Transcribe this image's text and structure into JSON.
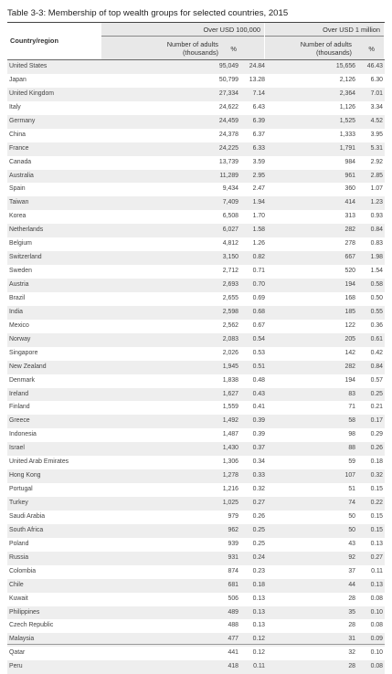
{
  "title": "Table 3-3: Membership of top wealth groups for selected countries, 2015",
  "header": {
    "country_col": "Country/region",
    "group1": "Over USD 100,000",
    "group2": "Over USD 1 million",
    "adults_label": "Number of adults",
    "thousands_label": "(thousands)",
    "pct_label": "%"
  },
  "rows": [
    [
      "United States",
      "95,049",
      "24.84",
      "15,656",
      "46.43"
    ],
    [
      "Japan",
      "50,799",
      "13.28",
      "2,126",
      "6.30"
    ],
    [
      "United Kingdom",
      "27,334",
      "7.14",
      "2,364",
      "7.01"
    ],
    [
      "Italy",
      "24,622",
      "6.43",
      "1,126",
      "3.34"
    ],
    [
      "Germany",
      "24,459",
      "6.39",
      "1,525",
      "4.52"
    ],
    [
      "China",
      "24,378",
      "6.37",
      "1,333",
      "3.95"
    ],
    [
      "France",
      "24,225",
      "6.33",
      "1,791",
      "5.31"
    ],
    [
      "Canada",
      "13,739",
      "3.59",
      "984",
      "2.92"
    ],
    [
      "Australia",
      "11,289",
      "2.95",
      "961",
      "2.85"
    ],
    [
      "Spain",
      "9,434",
      "2.47",
      "360",
      "1.07"
    ],
    [
      "Taiwan",
      "7,409",
      "1.94",
      "414",
      "1.23"
    ],
    [
      "Korea",
      "6,508",
      "1.70",
      "313",
      "0.93"
    ],
    [
      "Netherlands",
      "6,027",
      "1.58",
      "282",
      "0.84"
    ],
    [
      "Belgium",
      "4,812",
      "1.26",
      "278",
      "0.83"
    ],
    [
      "Switzerland",
      "3,150",
      "0.82",
      "667",
      "1.98"
    ],
    [
      "Sweden",
      "2,712",
      "0.71",
      "520",
      "1.54"
    ],
    [
      "Austria",
      "2,693",
      "0.70",
      "194",
      "0.58"
    ],
    [
      "Brazil",
      "2,655",
      "0.69",
      "168",
      "0.50"
    ],
    [
      "India",
      "2,598",
      "0.68",
      "185",
      "0.55"
    ],
    [
      "Mexico",
      "2,562",
      "0.67",
      "122",
      "0.36"
    ],
    [
      "Norway",
      "2,083",
      "0.54",
      "205",
      "0.61"
    ],
    [
      "Singapore",
      "2,026",
      "0.53",
      "142",
      "0.42"
    ],
    [
      "New Zealand",
      "1,945",
      "0.51",
      "282",
      "0.84"
    ],
    [
      "Denmark",
      "1,838",
      "0.48",
      "194",
      "0.57"
    ],
    [
      "Ireland",
      "1,627",
      "0.43",
      "83",
      "0.25"
    ],
    [
      "Finland",
      "1,559",
      "0.41",
      "71",
      "0.21"
    ],
    [
      "Greece",
      "1,492",
      "0.39",
      "58",
      "0.17"
    ],
    [
      "Indonesia",
      "1,487",
      "0.39",
      "98",
      "0.29"
    ],
    [
      "Israel",
      "1,430",
      "0.37",
      "88",
      "0.26"
    ],
    [
      "United Arab Emirates",
      "1,306",
      "0.34",
      "59",
      "0.18"
    ],
    [
      "Hong Kong",
      "1,278",
      "0.33",
      "107",
      "0.32"
    ],
    [
      "Portugal",
      "1,216",
      "0.32",
      "51",
      "0.15"
    ],
    [
      "Turkey",
      "1,025",
      "0.27",
      "74",
      "0.22"
    ],
    [
      "Saudi Arabia",
      "979",
      "0.26",
      "50",
      "0.15"
    ],
    [
      "South Africa",
      "962",
      "0.25",
      "50",
      "0.15"
    ],
    [
      "Poland",
      "939",
      "0.25",
      "43",
      "0.13"
    ],
    [
      "Russia",
      "931",
      "0.24",
      "92",
      "0.27"
    ],
    [
      "Colombia",
      "874",
      "0.23",
      "37",
      "0.11"
    ],
    [
      "Chile",
      "681",
      "0.18",
      "44",
      "0.13"
    ],
    [
      "Kuwait",
      "506",
      "0.13",
      "28",
      "0.08"
    ],
    [
      "Philippines",
      "489",
      "0.13",
      "35",
      "0.10"
    ],
    [
      "Czech Republic",
      "488",
      "0.13",
      "28",
      "0.08"
    ],
    [
      "Malaysia",
      "477",
      "0.12",
      "31",
      "0.09"
    ],
    [
      "Qatar",
      "441",
      "0.12",
      "32",
      "0.10"
    ],
    [
      "Peru",
      "418",
      "0.11",
      "28",
      "0.08"
    ]
  ]
}
